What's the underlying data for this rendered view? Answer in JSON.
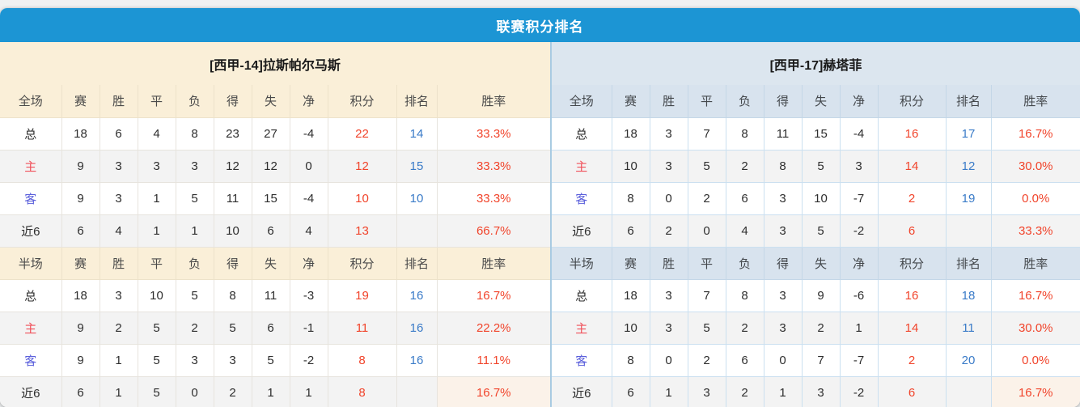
{
  "title": "联赛积分排名",
  "colors": {
    "title_bar": "#1C95D4",
    "left_header_bg": "#FAEFD8",
    "right_header_bg": "#DCE6EF",
    "points_text": "#F1442B",
    "rank_text": "#3A7BC8",
    "winrate_text": "#F1442B",
    "home_label": "#F0505A",
    "away_label": "#5A5FDB"
  },
  "columns": [
    "赛",
    "胜",
    "平",
    "负",
    "得",
    "失",
    "净",
    "积分",
    "排名",
    "胜率"
  ],
  "tables": [
    {
      "side": "left",
      "team": "[西甲-14]拉斯帕尔马斯",
      "sections": [
        {
          "label": "全场",
          "rows": [
            {
              "label": "总",
              "type": "total",
              "values": [
                18,
                6,
                4,
                8,
                23,
                27,
                -4
              ],
              "points": "22",
              "rank": "14",
              "win_rate": "33.3%"
            },
            {
              "label": "主",
              "type": "home",
              "values": [
                9,
                3,
                3,
                3,
                12,
                12,
                0
              ],
              "points": "12",
              "rank": "15",
              "win_rate": "33.3%"
            },
            {
              "label": "客",
              "type": "away",
              "values": [
                9,
                3,
                1,
                5,
                11,
                15,
                -4
              ],
              "points": "10",
              "rank": "10",
              "win_rate": "33.3%"
            },
            {
              "label": "近6",
              "type": "recent",
              "values": [
                6,
                4,
                1,
                1,
                10,
                6,
                4
              ],
              "points": "13",
              "rank": "",
              "win_rate": "66.7%"
            }
          ]
        },
        {
          "label": "半场",
          "rows": [
            {
              "label": "总",
              "type": "total",
              "values": [
                18,
                3,
                10,
                5,
                8,
                11,
                -3
              ],
              "points": "19",
              "rank": "16",
              "win_rate": "16.7%"
            },
            {
              "label": "主",
              "type": "home",
              "values": [
                9,
                2,
                5,
                2,
                5,
                6,
                -1
              ],
              "points": "11",
              "rank": "16",
              "win_rate": "22.2%"
            },
            {
              "label": "客",
              "type": "away",
              "values": [
                9,
                1,
                5,
                3,
                3,
                5,
                -2
              ],
              "points": "8",
              "rank": "16",
              "win_rate": "11.1%"
            },
            {
              "label": "近6",
              "type": "recent",
              "values": [
                6,
                1,
                5,
                0,
                2,
                1,
                1
              ],
              "points": "8",
              "rank": "",
              "win_rate": "16.7%"
            }
          ]
        }
      ]
    },
    {
      "side": "right",
      "team": "[西甲-17]赫塔菲",
      "sections": [
        {
          "label": "全场",
          "rows": [
            {
              "label": "总",
              "type": "total",
              "values": [
                18,
                3,
                7,
                8,
                11,
                15,
                -4
              ],
              "points": "16",
              "rank": "17",
              "win_rate": "16.7%"
            },
            {
              "label": "主",
              "type": "home",
              "values": [
                10,
                3,
                5,
                2,
                8,
                5,
                3
              ],
              "points": "14",
              "rank": "12",
              "win_rate": "30.0%"
            },
            {
              "label": "客",
              "type": "away",
              "values": [
                8,
                0,
                2,
                6,
                3,
                10,
                -7
              ],
              "points": "2",
              "rank": "19",
              "win_rate": "0.0%"
            },
            {
              "label": "近6",
              "type": "recent",
              "values": [
                6,
                2,
                0,
                4,
                3,
                5,
                -2
              ],
              "points": "6",
              "rank": "",
              "win_rate": "33.3%"
            }
          ]
        },
        {
          "label": "半场",
          "rows": [
            {
              "label": "总",
              "type": "total",
              "values": [
                18,
                3,
                7,
                8,
                3,
                9,
                -6
              ],
              "points": "16",
              "rank": "18",
              "win_rate": "16.7%"
            },
            {
              "label": "主",
              "type": "home",
              "values": [
                10,
                3,
                5,
                2,
                3,
                2,
                1
              ],
              "points": "14",
              "rank": "11",
              "win_rate": "30.0%"
            },
            {
              "label": "客",
              "type": "away",
              "values": [
                8,
                0,
                2,
                6,
                0,
                7,
                -7
              ],
              "points": "2",
              "rank": "20",
              "win_rate": "0.0%"
            },
            {
              "label": "近6",
              "type": "recent",
              "values": [
                6,
                1,
                3,
                2,
                1,
                3,
                -2
              ],
              "points": "6",
              "rank": "",
              "win_rate": "16.7%"
            }
          ]
        }
      ]
    }
  ]
}
